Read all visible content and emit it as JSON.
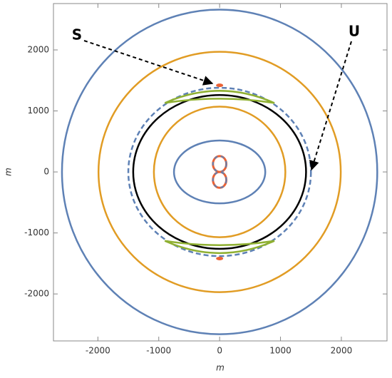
{
  "chart_data": {
    "type": "contour",
    "xlabel": "m",
    "ylabel": "m",
    "xlim": [
      -2730,
      2750
    ],
    "ylim": [
      -2770,
      2760
    ],
    "xticks": [
      -2000,
      -1000,
      0,
      1000,
      2000
    ],
    "yticks": [
      -2000,
      -1000,
      0,
      1000,
      2000
    ],
    "annotations": [
      "S",
      "U"
    ],
    "contours": [
      {
        "color": "#5e81b5",
        "dashed": false,
        "rx": 2590,
        "ry": 2660
      },
      {
        "color": "#e19c24",
        "dashed": false,
        "rx": 1990,
        "ry": 1970
      },
      {
        "color": "#5e81b5",
        "dashed": true,
        "rx": 1500,
        "ry": 1380
      },
      {
        "color": "#000000",
        "dashed": false,
        "rx": 1420,
        "ry": 1260
      },
      {
        "color": "#e19c24",
        "dashed": false,
        "rx": 1080,
        "ry": 1070
      },
      {
        "color": "#5e81b5",
        "dashed": false,
        "rx": 750,
        "ry": 515
      }
    ],
    "crescents": [
      {
        "color": "#8fb032",
        "x_half": 900,
        "y_tip": 1130,
        "y_outer": 1330,
        "y_inner": 1200
      },
      {
        "color": "#8fb032",
        "x_half": 900,
        "y_tip": -1130,
        "y_outer": -1330,
        "y_inner": -1200
      }
    ],
    "points": {
      "color": "#eb6235",
      "x": [
        0,
        0
      ],
      "y": [
        1420,
        -1420
      ]
    },
    "figure_eight": {
      "color": "#eb6235",
      "dash_color": "#5e81b5",
      "half_width": 110,
      "half_height": 260
    }
  }
}
